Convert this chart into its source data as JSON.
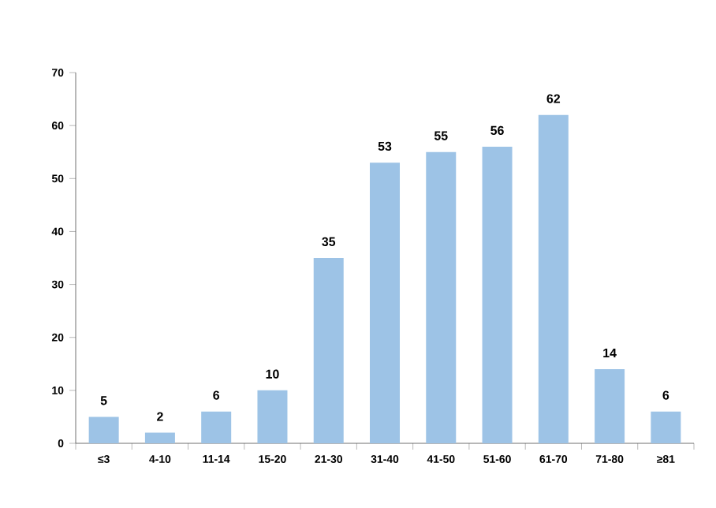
{
  "chart_data": {
    "type": "bar",
    "categories": [
      "≤3",
      "4-10",
      "11-14",
      "15-20",
      "21-30",
      "31-40",
      "41-50",
      "51-60",
      "61-70",
      "71-80",
      "≥81"
    ],
    "values": [
      5,
      2,
      6,
      10,
      35,
      53,
      55,
      56,
      62,
      14,
      6
    ],
    "color": "#9dc3e6",
    "ylim": [
      0,
      70
    ],
    "yticks": [
      0,
      10,
      20,
      30,
      40,
      50,
      60,
      70
    ],
    "data_labels": true
  }
}
